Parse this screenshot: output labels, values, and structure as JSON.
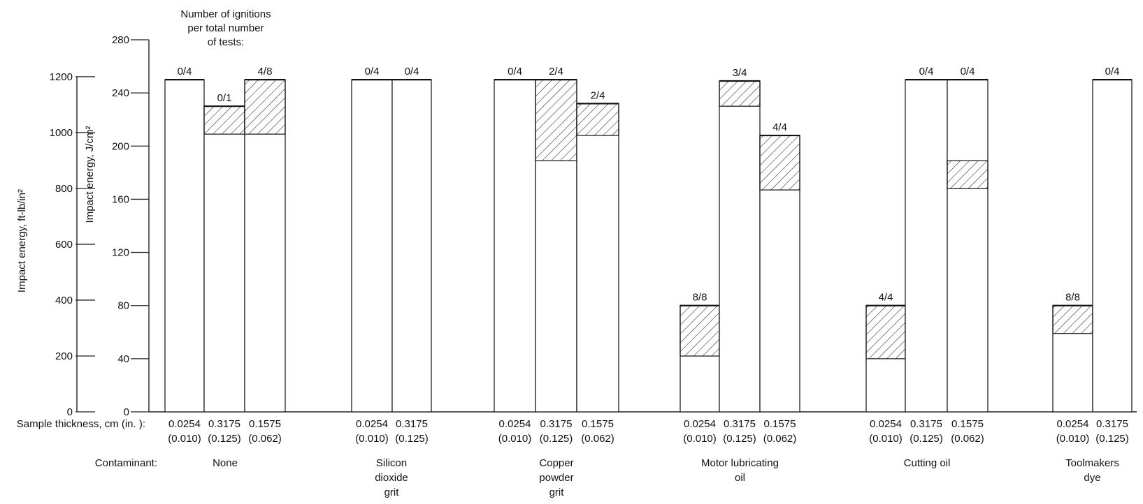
{
  "chart_data": {
    "type": "bar",
    "ylabel_left": "Impact energy, ft-lb/in²",
    "ylabel_right": "Impact energy, J/cm²",
    "yticks_ftlb": [
      0,
      200,
      400,
      600,
      800,
      1000,
      1200
    ],
    "yticks_jcm2": [
      0,
      40,
      80,
      120,
      160,
      200,
      240,
      280
    ],
    "ylim_jcm2": [
      0,
      280
    ],
    "legend_title": [
      "Number of ignitions",
      "per total number",
      "of tests:"
    ],
    "row_label_thickness": "Sample thickness, cm (in. ):",
    "row_label_contaminant": "Contaminant:",
    "groups": [
      {
        "contaminant": [
          "None"
        ],
        "bars": [
          {
            "thickness_cm": "0.0254",
            "thickness_in": "(0.010)",
            "top": 250,
            "hatch_low": null,
            "ignitions": "0/4"
          },
          {
            "thickness_cm": "0.3175",
            "thickness_in": "(0.125)",
            "top": 230,
            "hatch_low": 209,
            "ignitions": "0/1"
          },
          {
            "thickness_cm": "0.1575",
            "thickness_in": "(0.062)",
            "top": 250,
            "hatch_low": 209,
            "ignitions": "4/8"
          }
        ]
      },
      {
        "contaminant": [
          "Silicon",
          "dioxide",
          "grit"
        ],
        "bars": [
          {
            "thickness_cm": "0.0254",
            "thickness_in": "(0.010)",
            "top": 250,
            "hatch_low": null,
            "ignitions": "0/4"
          },
          {
            "thickness_cm": "0.3175",
            "thickness_in": "(0.125)",
            "top": 250,
            "hatch_low": null,
            "ignitions": "0/4"
          }
        ]
      },
      {
        "contaminant": [
          "Copper",
          "powder",
          "grit"
        ],
        "bars": [
          {
            "thickness_cm": "0.0254",
            "thickness_in": "(0.010)",
            "top": 250,
            "hatch_low": null,
            "ignitions": "0/4"
          },
          {
            "thickness_cm": "0.3175",
            "thickness_in": "(0.125)",
            "top": 250,
            "hatch_low": 189,
            "ignitions": "2/4"
          },
          {
            "thickness_cm": "0.1575",
            "thickness_in": "(0.062)",
            "top": 232,
            "hatch_low": 208,
            "ignitions": "2/4"
          }
        ]
      },
      {
        "contaminant": [
          "Motor lubricating",
          "oil"
        ],
        "bars": [
          {
            "thickness_cm": "0.0254",
            "thickness_in": "(0.010)",
            "top": 80,
            "hatch_low": 42,
            "ignitions": "8/8"
          },
          {
            "thickness_cm": "0.3175",
            "thickness_in": "(0.125)",
            "top": 249,
            "hatch_low": 230,
            "ignitions": "3/4"
          },
          {
            "thickness_cm": "0.1575",
            "thickness_in": "(0.062)",
            "top": 208,
            "hatch_low": 167,
            "ignitions": "4/4"
          }
        ]
      },
      {
        "contaminant": [
          "Cutting oil"
        ],
        "bars": [
          {
            "thickness_cm": "0.0254",
            "thickness_in": "(0.010)",
            "top": 80,
            "hatch_low": 40,
            "ignitions": "4/4"
          },
          {
            "thickness_cm": "0.3175",
            "thickness_in": "(0.125)",
            "top": 250,
            "hatch_low": null,
            "ignitions": "0/4"
          },
          {
            "thickness_cm": "0.1575",
            "thickness_in": "(0.062)",
            "top": 250,
            "hatch_low": 168,
            "hatch_high": 189,
            "ignitions": "0/4"
          }
        ]
      },
      {
        "contaminant": [
          "Toolmakers",
          "dye"
        ],
        "bars": [
          {
            "thickness_cm": "0.0254",
            "thickness_in": "(0.010)",
            "top": 80,
            "hatch_low": 59,
            "ignitions": "8/8"
          },
          {
            "thickness_cm": "0.3175",
            "thickness_in": "(0.125)",
            "top": 250,
            "hatch_low": null,
            "ignitions": "0/4"
          }
        ]
      }
    ]
  }
}
